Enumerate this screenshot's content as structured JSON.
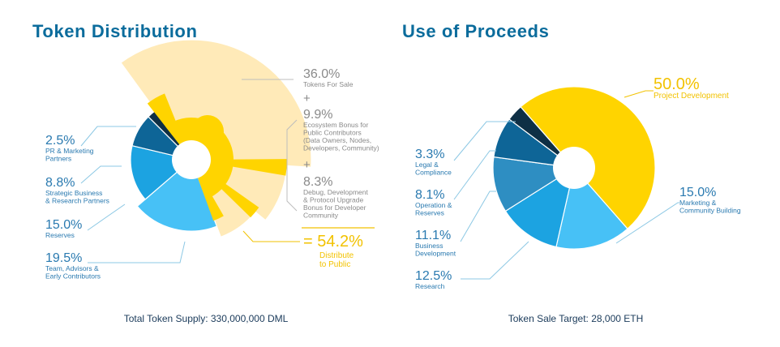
{
  "titles": {
    "left": "Token Distribution",
    "right": "Use of Proceeds"
  },
  "captions": {
    "left": "Total Token Supply: 330,000,000 DML",
    "right": "Token Sale Target: 28,000 ETH"
  },
  "colors": {
    "pale_yellow": "#ffeab8",
    "yellow": "#ffd400",
    "navy": "#0e2f45",
    "dark_blue": "#0e6597",
    "mid_blue": "#1ca3e1",
    "light_blue": "#47c1f6",
    "steel_blue": "#2e8ec2",
    "label_blue": "#2a7ab0",
    "label_gray": "#8a8a8a",
    "label_yellow": "#f2c200",
    "line_blue": "#8cc8e4",
    "line_gray": "#bdbdbd"
  },
  "chart_data": [
    {
      "type": "pie",
      "title": "Token Distribution",
      "total_label": "Total Token Supply: 330,000,000 DML",
      "slices": [
        {
          "value": 36.0,
          "pct": "36.0%",
          "desc": [
            "Tokens For Sale"
          ],
          "color": "pale_yellow",
          "group": "public"
        },
        {
          "value": 9.9,
          "pct": "9.9%",
          "desc": [
            "Ecosystem Bonus for",
            "Public Contributors",
            "(Data Owners, Nodes,",
            "Developers, Community)"
          ],
          "color": "pale_yellow",
          "group": "public"
        },
        {
          "value": 8.3,
          "pct": "8.3%",
          "desc": [
            "Debug, Development",
            "& Protocol Upgrade",
            "Bonus for Developer",
            "Community"
          ],
          "color": "pale_yellow",
          "group": "public"
        },
        {
          "value": 19.5,
          "pct": "19.5%",
          "desc": [
            "Team, Advisors &",
            "Early Contributors"
          ],
          "color": "light_blue"
        },
        {
          "value": 15.0,
          "pct": "15.0%",
          "desc": [
            "Reserves"
          ],
          "color": "mid_blue"
        },
        {
          "value": 8.8,
          "pct": "8.8%",
          "desc": [
            "Strategic Business",
            "& Research Partners"
          ],
          "color": "dark_blue"
        },
        {
          "value": 2.5,
          "pct": "2.5%",
          "desc": [
            "PR & Marketing",
            "Partners"
          ],
          "color": "navy"
        }
      ],
      "summary": {
        "pct": "= 54.2%",
        "desc": [
          "Distribute",
          "to Public"
        ]
      },
      "plus_sign": "+"
    },
    {
      "type": "pie",
      "title": "Use of Proceeds",
      "total_label": "Token Sale Target: 28,000 ETH",
      "slices": [
        {
          "value": 50.0,
          "pct": "50.0%",
          "desc": [
            "Project Development"
          ],
          "color": "yellow"
        },
        {
          "value": 15.0,
          "pct": "15.0%",
          "desc": [
            "Marketing &",
            "Community Building"
          ],
          "color": "light_blue"
        },
        {
          "value": 12.5,
          "pct": "12.5%",
          "desc": [
            "Research"
          ],
          "color": "mid_blue"
        },
        {
          "value": 11.1,
          "pct": "11.1%",
          "desc": [
            "Business",
            "Development"
          ],
          "color": "steel_blue"
        },
        {
          "value": 8.1,
          "pct": "8.1%",
          "desc": [
            "Operation &",
            "Reserves"
          ],
          "color": "dark_blue"
        },
        {
          "value": 3.3,
          "pct": "3.3%",
          "desc": [
            "Legal &",
            "Compliance"
          ],
          "color": "navy"
        }
      ]
    }
  ]
}
